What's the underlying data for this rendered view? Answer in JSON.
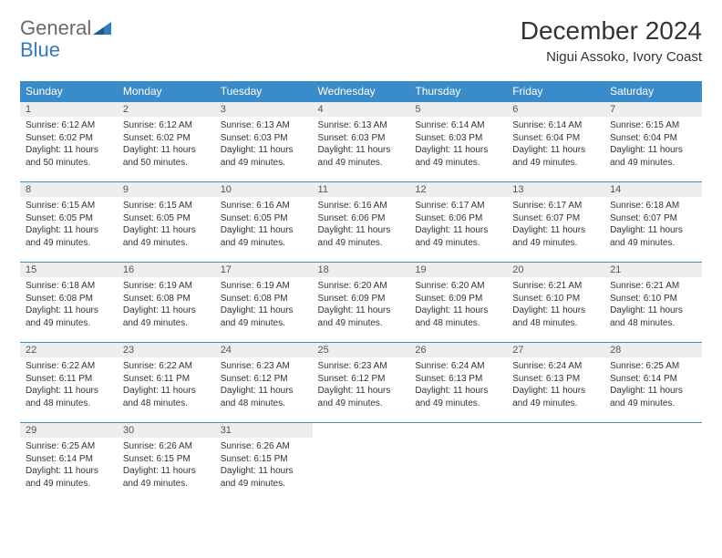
{
  "logo": {
    "text_general": "General",
    "text_blue": "Blue"
  },
  "title": "December 2024",
  "subtitle": "Nigui Assoko, Ivory Coast",
  "header_bg": "#3a8bc9",
  "header_fg": "#ffffff",
  "daynum_bg": "#eceeef",
  "border_color": "#3a8bc9",
  "day_names": [
    "Sunday",
    "Monday",
    "Tuesday",
    "Wednesday",
    "Thursday",
    "Friday",
    "Saturday"
  ],
  "weeks": [
    [
      {
        "n": "1",
        "sunrise": "Sunrise: 6:12 AM",
        "sunset": "Sunset: 6:02 PM",
        "daylight": "Daylight: 11 hours and 50 minutes."
      },
      {
        "n": "2",
        "sunrise": "Sunrise: 6:12 AM",
        "sunset": "Sunset: 6:02 PM",
        "daylight": "Daylight: 11 hours and 50 minutes."
      },
      {
        "n": "3",
        "sunrise": "Sunrise: 6:13 AM",
        "sunset": "Sunset: 6:03 PM",
        "daylight": "Daylight: 11 hours and 49 minutes."
      },
      {
        "n": "4",
        "sunrise": "Sunrise: 6:13 AM",
        "sunset": "Sunset: 6:03 PM",
        "daylight": "Daylight: 11 hours and 49 minutes."
      },
      {
        "n": "5",
        "sunrise": "Sunrise: 6:14 AM",
        "sunset": "Sunset: 6:03 PM",
        "daylight": "Daylight: 11 hours and 49 minutes."
      },
      {
        "n": "6",
        "sunrise": "Sunrise: 6:14 AM",
        "sunset": "Sunset: 6:04 PM",
        "daylight": "Daylight: 11 hours and 49 minutes."
      },
      {
        "n": "7",
        "sunrise": "Sunrise: 6:15 AM",
        "sunset": "Sunset: 6:04 PM",
        "daylight": "Daylight: 11 hours and 49 minutes."
      }
    ],
    [
      {
        "n": "8",
        "sunrise": "Sunrise: 6:15 AM",
        "sunset": "Sunset: 6:05 PM",
        "daylight": "Daylight: 11 hours and 49 minutes."
      },
      {
        "n": "9",
        "sunrise": "Sunrise: 6:15 AM",
        "sunset": "Sunset: 6:05 PM",
        "daylight": "Daylight: 11 hours and 49 minutes."
      },
      {
        "n": "10",
        "sunrise": "Sunrise: 6:16 AM",
        "sunset": "Sunset: 6:05 PM",
        "daylight": "Daylight: 11 hours and 49 minutes."
      },
      {
        "n": "11",
        "sunrise": "Sunrise: 6:16 AM",
        "sunset": "Sunset: 6:06 PM",
        "daylight": "Daylight: 11 hours and 49 minutes."
      },
      {
        "n": "12",
        "sunrise": "Sunrise: 6:17 AM",
        "sunset": "Sunset: 6:06 PM",
        "daylight": "Daylight: 11 hours and 49 minutes."
      },
      {
        "n": "13",
        "sunrise": "Sunrise: 6:17 AM",
        "sunset": "Sunset: 6:07 PM",
        "daylight": "Daylight: 11 hours and 49 minutes."
      },
      {
        "n": "14",
        "sunrise": "Sunrise: 6:18 AM",
        "sunset": "Sunset: 6:07 PM",
        "daylight": "Daylight: 11 hours and 49 minutes."
      }
    ],
    [
      {
        "n": "15",
        "sunrise": "Sunrise: 6:18 AM",
        "sunset": "Sunset: 6:08 PM",
        "daylight": "Daylight: 11 hours and 49 minutes."
      },
      {
        "n": "16",
        "sunrise": "Sunrise: 6:19 AM",
        "sunset": "Sunset: 6:08 PM",
        "daylight": "Daylight: 11 hours and 49 minutes."
      },
      {
        "n": "17",
        "sunrise": "Sunrise: 6:19 AM",
        "sunset": "Sunset: 6:08 PM",
        "daylight": "Daylight: 11 hours and 49 minutes."
      },
      {
        "n": "18",
        "sunrise": "Sunrise: 6:20 AM",
        "sunset": "Sunset: 6:09 PM",
        "daylight": "Daylight: 11 hours and 49 minutes."
      },
      {
        "n": "19",
        "sunrise": "Sunrise: 6:20 AM",
        "sunset": "Sunset: 6:09 PM",
        "daylight": "Daylight: 11 hours and 48 minutes."
      },
      {
        "n": "20",
        "sunrise": "Sunrise: 6:21 AM",
        "sunset": "Sunset: 6:10 PM",
        "daylight": "Daylight: 11 hours and 48 minutes."
      },
      {
        "n": "21",
        "sunrise": "Sunrise: 6:21 AM",
        "sunset": "Sunset: 6:10 PM",
        "daylight": "Daylight: 11 hours and 48 minutes."
      }
    ],
    [
      {
        "n": "22",
        "sunrise": "Sunrise: 6:22 AM",
        "sunset": "Sunset: 6:11 PM",
        "daylight": "Daylight: 11 hours and 48 minutes."
      },
      {
        "n": "23",
        "sunrise": "Sunrise: 6:22 AM",
        "sunset": "Sunset: 6:11 PM",
        "daylight": "Daylight: 11 hours and 48 minutes."
      },
      {
        "n": "24",
        "sunrise": "Sunrise: 6:23 AM",
        "sunset": "Sunset: 6:12 PM",
        "daylight": "Daylight: 11 hours and 48 minutes."
      },
      {
        "n": "25",
        "sunrise": "Sunrise: 6:23 AM",
        "sunset": "Sunset: 6:12 PM",
        "daylight": "Daylight: 11 hours and 49 minutes."
      },
      {
        "n": "26",
        "sunrise": "Sunrise: 6:24 AM",
        "sunset": "Sunset: 6:13 PM",
        "daylight": "Daylight: 11 hours and 49 minutes."
      },
      {
        "n": "27",
        "sunrise": "Sunrise: 6:24 AM",
        "sunset": "Sunset: 6:13 PM",
        "daylight": "Daylight: 11 hours and 49 minutes."
      },
      {
        "n": "28",
        "sunrise": "Sunrise: 6:25 AM",
        "sunset": "Sunset: 6:14 PM",
        "daylight": "Daylight: 11 hours and 49 minutes."
      }
    ],
    [
      {
        "n": "29",
        "sunrise": "Sunrise: 6:25 AM",
        "sunset": "Sunset: 6:14 PM",
        "daylight": "Daylight: 11 hours and 49 minutes."
      },
      {
        "n": "30",
        "sunrise": "Sunrise: 6:26 AM",
        "sunset": "Sunset: 6:15 PM",
        "daylight": "Daylight: 11 hours and 49 minutes."
      },
      {
        "n": "31",
        "sunrise": "Sunrise: 6:26 AM",
        "sunset": "Sunset: 6:15 PM",
        "daylight": "Daylight: 11 hours and 49 minutes."
      },
      null,
      null,
      null,
      null
    ]
  ]
}
